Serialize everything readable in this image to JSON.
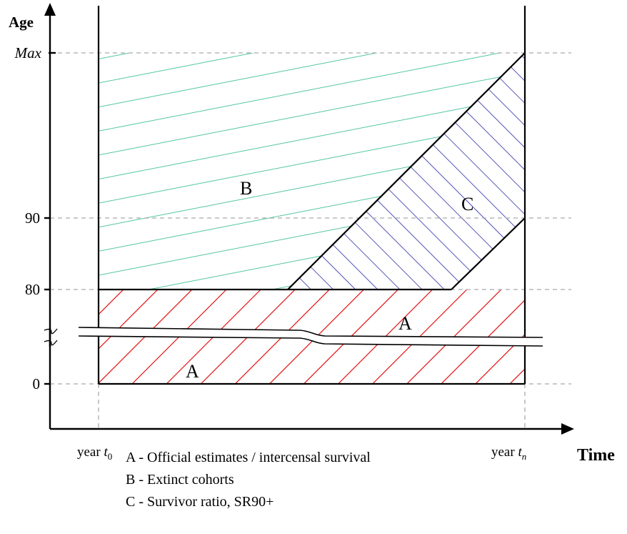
{
  "axes": {
    "y_label": "Age",
    "x_label": "Time",
    "y_ticks": [
      "Max",
      "90",
      "80",
      "0"
    ],
    "x_ticks": [
      {
        "prefix": "year ",
        "var": "t",
        "sub": "0"
      },
      {
        "prefix": "year ",
        "var": "t",
        "sub": "n"
      }
    ]
  },
  "regions": {
    "A_upper": "A",
    "B": "B",
    "C": "C",
    "A_lower": "A"
  },
  "legend": [
    "A - Official estimates / intercensal survival",
    "B - Extinct cohorts",
    "C - Survivor ratio, SR90+"
  ]
}
